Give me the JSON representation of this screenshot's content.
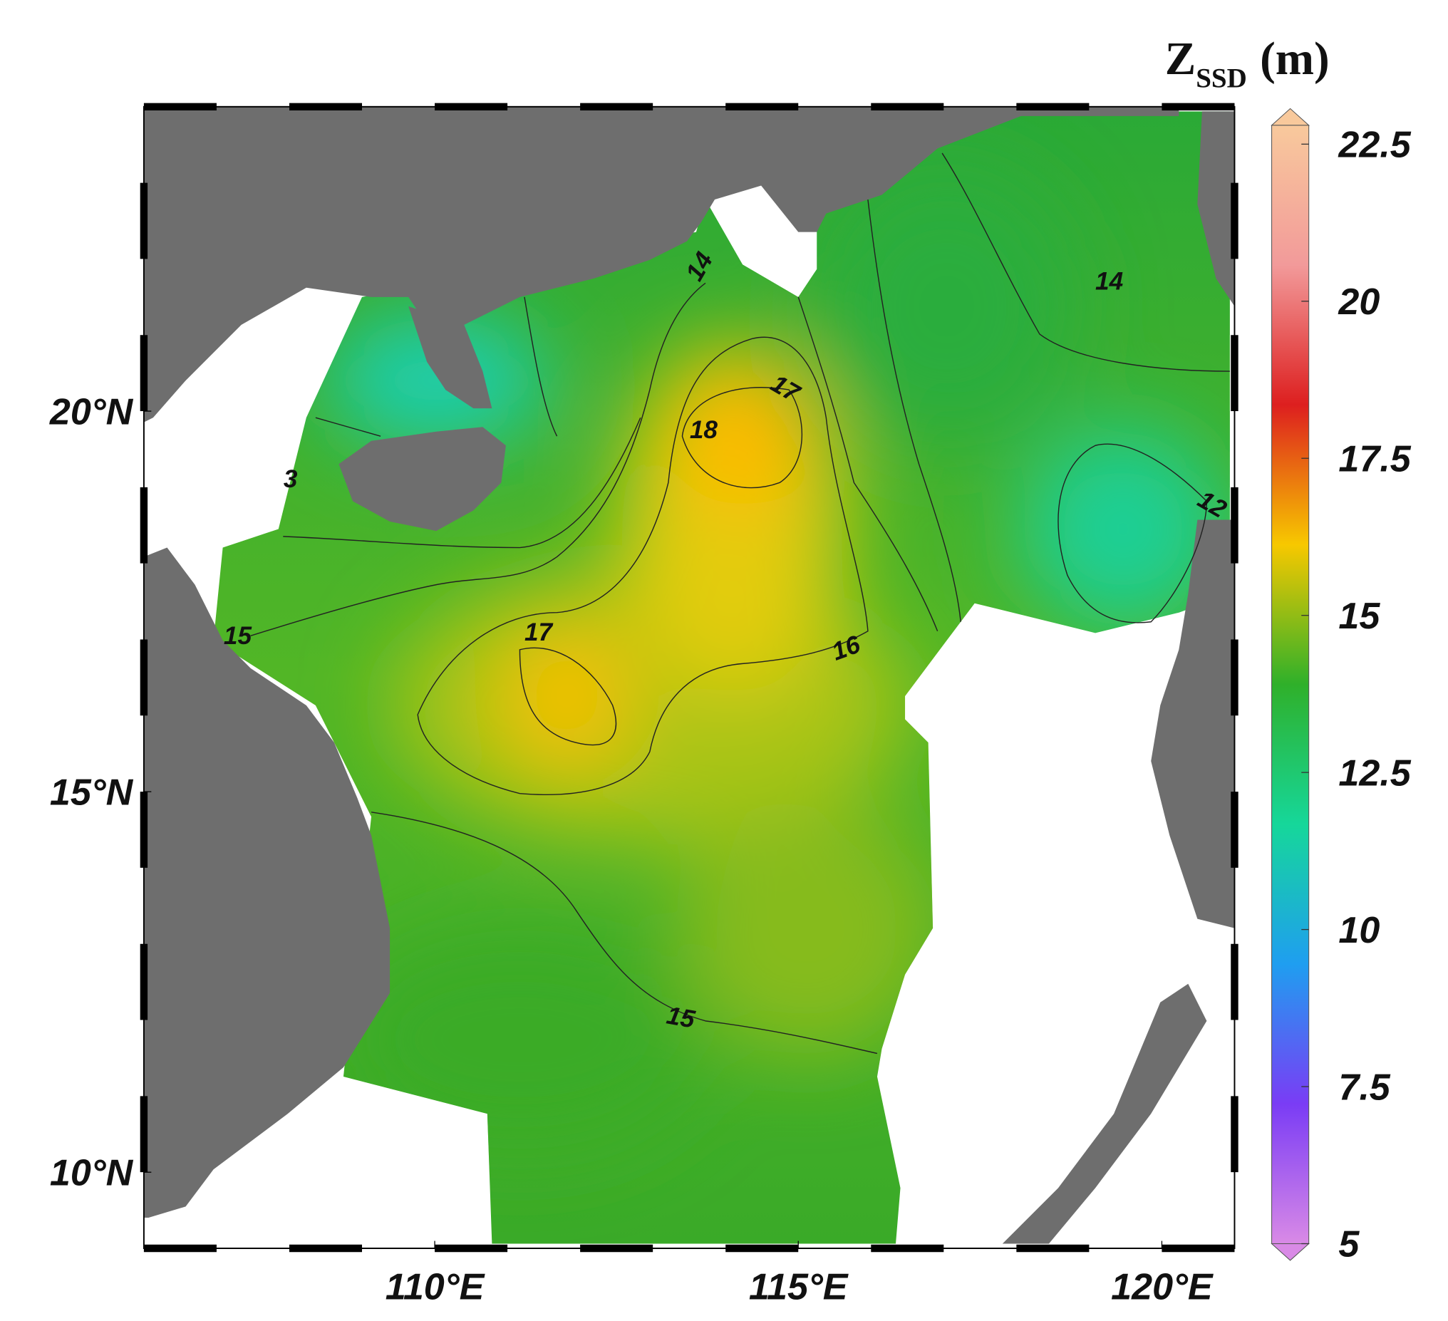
{
  "map": {
    "title": {
      "main": "Z",
      "subscript": "SSD",
      "unit": "(m)"
    },
    "xlim": [
      106,
      121
    ],
    "ylim": [
      9,
      24
    ],
    "xticks": [
      {
        "value": 110,
        "label": "110°E"
      },
      {
        "value": 115,
        "label": "115°E"
      },
      {
        "value": 120,
        "label": "120°E"
      }
    ],
    "yticks": [
      {
        "value": 20,
        "label": "20°N"
      },
      {
        "value": 15,
        "label": "15°N"
      },
      {
        "value": 10,
        "label": "10°N"
      }
    ],
    "colorbar": {
      "clim": [
        5,
        22.8
      ],
      "ticks": [
        5,
        7.5,
        10,
        12.5,
        15,
        17.5,
        20,
        22.5
      ],
      "colors": [
        "#d98ae6",
        "#7a3cf5",
        "#1f9ef0",
        "#16d79a",
        "#2fb02a",
        "#f7c800",
        "#dd1f1f",
        "#f29a9a",
        "#f8c99c"
      ]
    },
    "contour_labels": [
      "14",
      "14",
      "17",
      "18",
      "3",
      "15",
      "17",
      "16",
      "15",
      "12"
    ]
  }
}
